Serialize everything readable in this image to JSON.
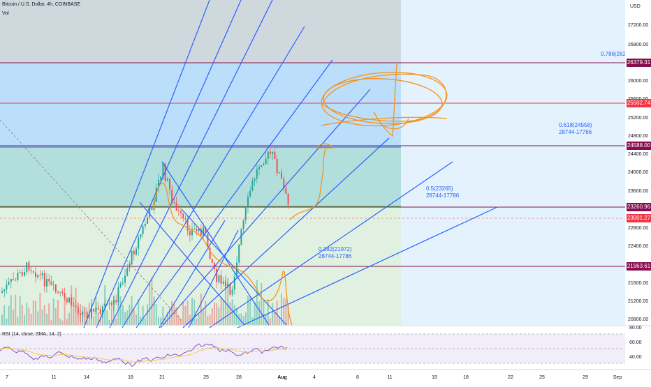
{
  "header": {
    "title": "Bitcoin / U.S. Dollar, 4h, COINBASE",
    "subtitle": "Vol",
    "currency": "USD"
  },
  "price_axis": {
    "ticks": [
      "27200.00",
      "26800.00",
      "26000.00",
      "25600.00",
      "25200.00",
      "24800.00",
      "24400.00",
      "24000.00",
      "23600.00",
      "22800.00",
      "22400.00",
      "21600.00",
      "21200.00",
      "20800.00"
    ]
  },
  "price_tags": [
    {
      "label": "26379.31",
      "color": "#880e4f"
    },
    {
      "label": "25502.74",
      "color": "#f23645"
    },
    {
      "label": "24588.00",
      "color": "#880e4f"
    },
    {
      "label": "23260.96",
      "color": "#880e4f"
    },
    {
      "label": "23001.27",
      "color": "#f23645"
    },
    {
      "label": "21963.61",
      "color": "#880e4f"
    }
  ],
  "fib_labels": [
    {
      "line1": "0.786(2622",
      "line2": ""
    },
    {
      "line1": "0.618(24558)",
      "line2": "28744-17786"
    },
    {
      "line1": "0.5(23265)",
      "line2": "28744-17786"
    },
    {
      "line1": "0.382(21972)",
      "line2": "28744-17786"
    }
  ],
  "rsi": {
    "label": "RSI (14, close, SMA, 14, 2)",
    "ticks": [
      "80.00",
      "60.00",
      "40.00"
    ]
  },
  "time_axis": {
    "labels": [
      "7",
      "11",
      "14",
      "18",
      "21",
      "25",
      "28",
      "Aug",
      "4",
      "8",
      "11",
      "15",
      "18",
      "22",
      "25",
      "29",
      "Sep"
    ]
  },
  "colors": {
    "up": "#26a69a",
    "down": "#ef5350",
    "fan": "#2962ff",
    "drawing": "#f7931a",
    "rsi_line": "#7e57c2",
    "rsi_sma": "#f7c948"
  }
}
